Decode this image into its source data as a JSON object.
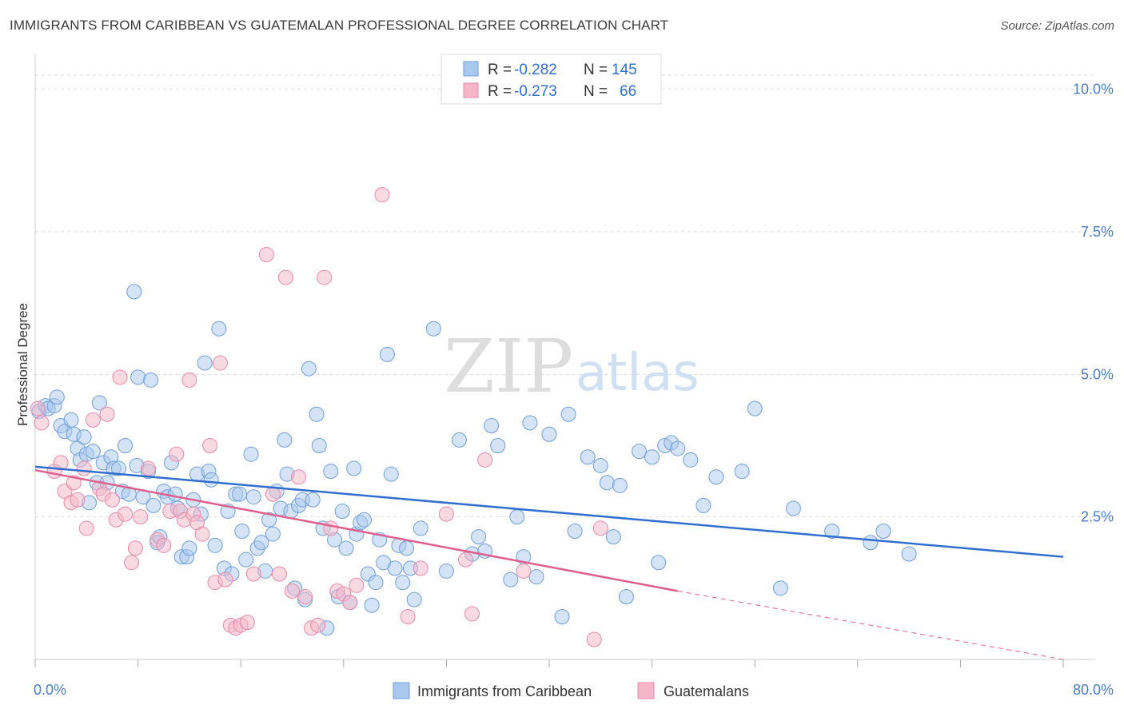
{
  "title": "IMMIGRANTS FROM CARIBBEAN VS GUATEMALAN PROFESSIONAL DEGREE CORRELATION CHART",
  "source": "Source: ZipAtlas.com",
  "watermark": {
    "zip": "ZIP",
    "atlas": "atlas"
  },
  "colors": {
    "blue_fill": "#a9c8ee",
    "blue_stroke": "#6f9fd8",
    "blue_line": "#2f6fcf",
    "pink_fill": "#f4b6c8",
    "pink_stroke": "#e88aa8",
    "pink_line": "#e0608d",
    "grid": "#dddddd",
    "tick_text": "#4a7cc7"
  },
  "legend": {
    "rows": [
      {
        "r_label": "R =",
        "r_value": "-0.282",
        "n_label": "N =",
        "n_value": "145"
      },
      {
        "r_label": "R =",
        "r_value": "-0.273",
        "n_label": "N =",
        "n_value": "66"
      }
    ]
  },
  "chart_data": {
    "type": "scatter",
    "xlabel": "",
    "ylabel": "Professional Degree",
    "xlim": [
      0,
      80
    ],
    "ylim": [
      0,
      10.5
    ],
    "x_tick_labels": [
      {
        "value": 0,
        "label": "0.0%"
      },
      {
        "value": 80,
        "label": "80.0%"
      }
    ],
    "y_ticks": [
      {
        "value": 2.5,
        "label": "2.5%"
      },
      {
        "value": 5.0,
        "label": "5.0%"
      },
      {
        "value": 7.5,
        "label": "7.5%"
      },
      {
        "value": 10.0,
        "label": "10.0%"
      }
    ],
    "x_minor_ticks": [
      0,
      8,
      16,
      24,
      32,
      40,
      48,
      56,
      64,
      72,
      80
    ],
    "grid": true,
    "legend_position": "top-center",
    "series": [
      {
        "name": "Immigrants from Caribbean",
        "color": "blue",
        "trend": {
          "x": [
            0,
            80
          ],
          "y": [
            3.38,
            1.8
          ]
        },
        "points": [
          [
            0.3,
            4.35
          ],
          [
            0.8,
            4.45
          ],
          [
            1.0,
            4.4
          ],
          [
            1.5,
            4.45
          ],
          [
            1.7,
            4.6
          ],
          [
            2.0,
            4.1
          ],
          [
            2.3,
            4.0
          ],
          [
            2.8,
            4.2
          ],
          [
            3.0,
            3.95
          ],
          [
            3.3,
            3.7
          ],
          [
            3.5,
            3.5
          ],
          [
            3.8,
            3.9
          ],
          [
            4.0,
            3.6
          ],
          [
            4.2,
            2.75
          ],
          [
            4.5,
            3.65
          ],
          [
            4.8,
            3.1
          ],
          [
            5.0,
            4.5
          ],
          [
            5.3,
            3.45
          ],
          [
            5.6,
            3.1
          ],
          [
            5.9,
            3.55
          ],
          [
            6.1,
            3.35
          ],
          [
            6.5,
            3.35
          ],
          [
            6.8,
            2.95
          ],
          [
            7.0,
            3.75
          ],
          [
            7.3,
            2.9
          ],
          [
            7.7,
            6.45
          ],
          [
            7.9,
            3.4
          ],
          [
            8.0,
            4.95
          ],
          [
            8.4,
            2.85
          ],
          [
            8.8,
            3.3
          ],
          [
            9.0,
            4.9
          ],
          [
            9.2,
            2.7
          ],
          [
            9.5,
            2.05
          ],
          [
            9.7,
            2.15
          ],
          [
            10.0,
            2.95
          ],
          [
            10.3,
            2.85
          ],
          [
            10.6,
            3.45
          ],
          [
            10.9,
            2.9
          ],
          [
            11.1,
            2.65
          ],
          [
            11.4,
            1.8
          ],
          [
            11.8,
            1.8
          ],
          [
            12.0,
            1.95
          ],
          [
            12.3,
            2.8
          ],
          [
            12.6,
            3.25
          ],
          [
            12.9,
            2.55
          ],
          [
            13.2,
            5.2
          ],
          [
            13.5,
            3.3
          ],
          [
            13.7,
            3.15
          ],
          [
            14.0,
            2.0
          ],
          [
            14.3,
            5.8
          ],
          [
            14.7,
            1.6
          ],
          [
            15.0,
            2.6
          ],
          [
            15.3,
            1.5
          ],
          [
            15.6,
            2.9
          ],
          [
            15.9,
            2.9
          ],
          [
            16.1,
            2.25
          ],
          [
            16.4,
            1.75
          ],
          [
            16.8,
            3.6
          ],
          [
            17.0,
            2.85
          ],
          [
            17.3,
            1.95
          ],
          [
            17.6,
            2.05
          ],
          [
            17.9,
            1.55
          ],
          [
            18.2,
            2.45
          ],
          [
            18.5,
            2.2
          ],
          [
            18.8,
            2.95
          ],
          [
            19.1,
            2.65
          ],
          [
            19.4,
            3.85
          ],
          [
            19.6,
            3.25
          ],
          [
            19.9,
            2.6
          ],
          [
            20.2,
            1.25
          ],
          [
            20.5,
            2.7
          ],
          [
            20.8,
            2.8
          ],
          [
            21.0,
            1.05
          ],
          [
            21.3,
            5.1
          ],
          [
            21.6,
            2.8
          ],
          [
            21.9,
            4.3
          ],
          [
            22.1,
            3.75
          ],
          [
            22.4,
            2.3
          ],
          [
            22.7,
            0.55
          ],
          [
            23.0,
            3.3
          ],
          [
            23.3,
            2.1
          ],
          [
            23.6,
            1.1
          ],
          [
            23.9,
            2.6
          ],
          [
            24.2,
            1.95
          ],
          [
            24.5,
            1.0
          ],
          [
            24.8,
            3.35
          ],
          [
            25.0,
            2.2
          ],
          [
            25.3,
            2.4
          ],
          [
            25.6,
            2.45
          ],
          [
            25.9,
            1.5
          ],
          [
            26.2,
            0.95
          ],
          [
            26.5,
            1.35
          ],
          [
            26.8,
            2.1
          ],
          [
            27.1,
            1.7
          ],
          [
            27.4,
            5.35
          ],
          [
            27.7,
            3.25
          ],
          [
            28.0,
            1.6
          ],
          [
            28.3,
            2.0
          ],
          [
            28.6,
            1.35
          ],
          [
            28.9,
            1.95
          ],
          [
            29.2,
            1.6
          ],
          [
            29.5,
            1.05
          ],
          [
            30.0,
            2.3
          ],
          [
            31.0,
            5.8
          ],
          [
            32.0,
            1.55
          ],
          [
            33.0,
            3.85
          ],
          [
            34.0,
            1.85
          ],
          [
            34.5,
            2.15
          ],
          [
            35.0,
            1.9
          ],
          [
            35.5,
            4.1
          ],
          [
            36.0,
            3.75
          ],
          [
            37.0,
            1.4
          ],
          [
            37.5,
            2.5
          ],
          [
            38.0,
            1.8
          ],
          [
            38.5,
            4.15
          ],
          [
            39.0,
            1.45
          ],
          [
            40.0,
            3.95
          ],
          [
            41.0,
            0.75
          ],
          [
            41.5,
            4.3
          ],
          [
            42.0,
            2.25
          ],
          [
            43.0,
            3.55
          ],
          [
            44.0,
            3.4
          ],
          [
            44.5,
            3.1
          ],
          [
            45.0,
            2.15
          ],
          [
            45.5,
            3.05
          ],
          [
            46.0,
            1.1
          ],
          [
            47.0,
            3.65
          ],
          [
            48.0,
            3.55
          ],
          [
            48.5,
            1.7
          ],
          [
            49.0,
            3.75
          ],
          [
            49.5,
            3.8
          ],
          [
            50.0,
            3.7
          ],
          [
            51.0,
            3.5
          ],
          [
            52.0,
            2.7
          ],
          [
            53.0,
            3.2
          ],
          [
            55.0,
            3.3
          ],
          [
            56.0,
            4.4
          ],
          [
            58.0,
            1.25
          ],
          [
            59.0,
            2.65
          ],
          [
            62.0,
            2.25
          ],
          [
            65.0,
            2.05
          ],
          [
            66.0,
            2.25
          ],
          [
            68.0,
            1.85
          ]
        ]
      },
      {
        "name": "Guatemalans",
        "color": "pink",
        "trend": {
          "x": [
            0,
            50
          ],
          "y": [
            3.32,
            1.2
          ]
        },
        "trend_dashed": {
          "x": [
            50,
            80
          ],
          "y": [
            1.2,
            0.0
          ]
        },
        "points": [
          [
            0.2,
            4.4
          ],
          [
            0.5,
            4.15
          ],
          [
            1.5,
            3.3
          ],
          [
            2.0,
            3.45
          ],
          [
            2.3,
            2.95
          ],
          [
            2.8,
            2.75
          ],
          [
            3.0,
            3.1
          ],
          [
            3.3,
            2.8
          ],
          [
            3.8,
            3.35
          ],
          [
            4.0,
            2.3
          ],
          [
            4.5,
            4.2
          ],
          [
            5.0,
            3.0
          ],
          [
            5.3,
            2.9
          ],
          [
            5.6,
            4.3
          ],
          [
            6.0,
            2.8
          ],
          [
            6.3,
            2.45
          ],
          [
            6.6,
            4.95
          ],
          [
            7.0,
            2.55
          ],
          [
            7.5,
            1.7
          ],
          [
            7.8,
            1.95
          ],
          [
            8.2,
            2.5
          ],
          [
            8.8,
            3.35
          ],
          [
            9.5,
            2.1
          ],
          [
            10.0,
            2.0
          ],
          [
            10.5,
            2.6
          ],
          [
            11.0,
            3.6
          ],
          [
            11.3,
            2.6
          ],
          [
            11.6,
            2.45
          ],
          [
            12.0,
            4.9
          ],
          [
            12.3,
            2.55
          ],
          [
            12.6,
            2.4
          ],
          [
            13.0,
            2.2
          ],
          [
            13.6,
            3.75
          ],
          [
            14.0,
            1.35
          ],
          [
            14.4,
            5.2
          ],
          [
            14.8,
            1.4
          ],
          [
            15.2,
            0.6
          ],
          [
            15.6,
            0.55
          ],
          [
            16.0,
            0.6
          ],
          [
            16.5,
            0.65
          ],
          [
            17.0,
            1.5
          ],
          [
            18.0,
            7.1
          ],
          [
            18.5,
            2.9
          ],
          [
            19.0,
            1.5
          ],
          [
            19.5,
            6.7
          ],
          [
            20.0,
            1.2
          ],
          [
            20.5,
            3.2
          ],
          [
            21.0,
            1.1
          ],
          [
            21.5,
            0.55
          ],
          [
            22.0,
            0.6
          ],
          [
            22.5,
            6.7
          ],
          [
            23.0,
            2.3
          ],
          [
            23.5,
            1.2
          ],
          [
            24.0,
            1.15
          ],
          [
            24.5,
            1.0
          ],
          [
            25.0,
            1.3
          ],
          [
            27.0,
            8.15
          ],
          [
            29.0,
            0.75
          ],
          [
            30.0,
            1.6
          ],
          [
            32.0,
            2.55
          ],
          [
            33.5,
            1.75
          ],
          [
            34.0,
            0.8
          ],
          [
            35.0,
            3.5
          ],
          [
            38.0,
            1.55
          ],
          [
            43.5,
            0.35
          ],
          [
            44.0,
            2.3
          ]
        ]
      }
    ]
  }
}
